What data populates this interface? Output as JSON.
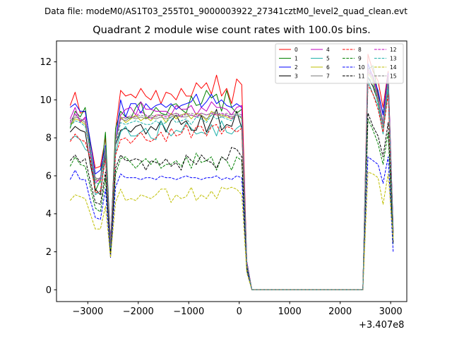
{
  "suptitle": "Data file: modeM0/AS1T03_255T01_9000003922_27341cztM0_level2_quad_clean.evt",
  "chart_data": {
    "type": "line",
    "title": "Quadrant 2 module wise count rates with 100.0s bins.",
    "xlabel": "",
    "ylabel": "",
    "x_offset_text": "+3.407e8",
    "xlim": [
      -3620,
      3320
    ],
    "ylim": [
      -0.62,
      13.1
    ],
    "xticks": [
      -3000,
      -2000,
      -1000,
      0,
      1000,
      2000,
      3000
    ],
    "xtick_labels": [
      "−3000",
      "−2000",
      "−1000",
      "0",
      "1000",
      "2000",
      "3000"
    ],
    "yticks": [
      0,
      2,
      4,
      6,
      8,
      10,
      12
    ],
    "ytick_labels": [
      "0",
      "2",
      "4",
      "6",
      "8",
      "10",
      "12"
    ],
    "grid": false,
    "legend_placement": "top-right",
    "legend_columns": 4,
    "x": [
      -3350,
      -3250,
      -3150,
      -3050,
      -2950,
      -2850,
      -2750,
      -2650,
      -2550,
      -2450,
      -2350,
      -2250,
      -2150,
      -2050,
      -1950,
      -1850,
      -1750,
      -1650,
      -1550,
      -1450,
      -1350,
      -1250,
      -1150,
      -1050,
      -950,
      -850,
      -750,
      -650,
      -550,
      -450,
      -350,
      -250,
      -150,
      -50,
      50,
      150,
      250,
      350,
      450,
      550,
      650,
      750,
      850,
      950,
      1050,
      1150,
      1250,
      1350,
      1450,
      1550,
      1650,
      1750,
      1850,
      1950,
      2050,
      2150,
      2250,
      2350,
      2450,
      2550,
      2650,
      2750,
      2850,
      2950,
      3050
    ],
    "series": [
      {
        "name": "0",
        "color": "#ff0000",
        "dash": "solid",
        "values": [
          9.7,
          10.4,
          9.3,
          9.4,
          7.8,
          6.4,
          6.5,
          8.0,
          2.3,
          8.4,
          10.5,
          10.2,
          10.3,
          10.1,
          10.6,
          10.2,
          10.0,
          10.5,
          9.8,
          10.4,
          10.3,
          10.0,
          10.6,
          10.2,
          10.2,
          10.9,
          10.6,
          10.9,
          10.3,
          11.3,
          10.2,
          10.6,
          9.8,
          11.1,
          10.8,
          1.5,
          0,
          0,
          0,
          0,
          0,
          0,
          0,
          0,
          0,
          0,
          0,
          0,
          0,
          0,
          0,
          0,
          0,
          0,
          0,
          0,
          0,
          0,
          0,
          12.4,
          11.5,
          11.0,
          9.6,
          11.5,
          3.2
        ]
      },
      {
        "name": "1",
        "color": "#008000",
        "dash": "solid",
        "values": [
          8.5,
          9.4,
          9.1,
          9.6,
          7.5,
          5.2,
          5.8,
          8.3,
          2.4,
          8.5,
          9.4,
          9.1,
          9.0,
          9.6,
          9.9,
          9.0,
          9.2,
          9.6,
          9.3,
          9.2,
          9.7,
          9.8,
          9.5,
          9.3,
          10.2,
          9.7,
          9.8,
          10.5,
          10.1,
          10.3,
          9.4,
          10.5,
          9.6,
          9.3,
          9.5,
          1.4,
          0,
          0,
          0,
          0,
          0,
          0,
          0,
          0,
          0,
          0,
          0,
          0,
          0,
          0,
          0,
          0,
          0,
          0,
          0,
          0,
          0,
          0,
          0,
          11.6,
          11.8,
          10.3,
          9.3,
          10.8,
          3.0
        ]
      },
      {
        "name": "2",
        "color": "#0000ff",
        "dash": "solid",
        "values": [
          9.6,
          9.8,
          9.4,
          9.4,
          7.8,
          6.1,
          6.3,
          7.6,
          2.5,
          7.8,
          10.0,
          9.1,
          9.8,
          9.8,
          9.3,
          9.8,
          9.5,
          9.7,
          9.8,
          9.6,
          9.8,
          9.5,
          9.7,
          9.8,
          9.9,
          10.3,
          9.6,
          9.9,
          10.3,
          9.8,
          10.0,
          9.7,
          9.6,
          9.8,
          9.6,
          1.5,
          0,
          0,
          0,
          0,
          0,
          0,
          0,
          0,
          0,
          0,
          0,
          0,
          0,
          0,
          0,
          0,
          0,
          0,
          0,
          0,
          0,
          0,
          0,
          11.9,
          11.2,
          10.5,
          9.2,
          11.4,
          3.2
        ]
      },
      {
        "name": "3",
        "color": "#000000",
        "dash": "solid",
        "values": [
          8.3,
          8.6,
          8.4,
          8.3,
          6.6,
          5.3,
          5.0,
          7.2,
          2.2,
          7.6,
          8.4,
          8.5,
          8.3,
          8.6,
          8.7,
          8.2,
          8.6,
          8.4,
          8.9,
          8.3,
          8.9,
          9.2,
          8.7,
          8.9,
          8.4,
          8.4,
          9.2,
          8.3,
          8.9,
          9.5,
          8.4,
          8.7,
          8.6,
          9.4,
          8.5,
          1.3,
          0,
          0,
          0,
          0,
          0,
          0,
          0,
          0,
          0,
          0,
          0,
          0,
          0,
          0,
          0,
          0,
          0,
          0,
          0,
          0,
          0,
          0,
          0,
          11.2,
          10.7,
          9.9,
          8.8,
          10.5,
          3.0
        ]
      },
      {
        "name": "4",
        "color": "#bf00bf",
        "dash": "solid",
        "values": [
          9.0,
          9.6,
          8.8,
          9.1,
          7.1,
          5.6,
          5.9,
          7.3,
          2.4,
          7.9,
          9.2,
          9.5,
          9.6,
          9.2,
          9.9,
          9.5,
          9.5,
          9.4,
          9.4,
          9.4,
          9.2,
          9.7,
          9.5,
          9.5,
          9.7,
          9.2,
          9.6,
          9.4,
          9.9,
          9.6,
          9.6,
          9.5,
          9.2,
          9.6,
          9.7,
          1.5,
          0,
          0,
          0,
          0,
          0,
          0,
          0,
          0,
          0,
          0,
          0,
          0,
          0,
          0,
          0,
          0,
          0,
          0,
          0,
          0,
          0,
          0,
          0,
          11.6,
          11.3,
          10.2,
          8.8,
          11.3,
          3.1
        ]
      },
      {
        "name": "5",
        "color": "#20b2aa",
        "dash": "solid",
        "values": [
          7.9,
          8.1,
          7.9,
          7.4,
          7.2,
          5.0,
          5.2,
          7.0,
          2.0,
          7.2,
          8.3,
          8.6,
          8.1,
          8.1,
          8.3,
          8.5,
          8.0,
          7.9,
          8.9,
          8.4,
          8.1,
          8.4,
          8.3,
          8.8,
          8.5,
          8.2,
          8.3,
          8.2,
          8.7,
          8.1,
          8.9,
          8.3,
          8.2,
          8.5,
          8.7,
          1.3,
          0,
          0,
          0,
          0,
          0,
          0,
          0,
          0,
          0,
          0,
          0,
          0,
          0,
          0,
          0,
          0,
          0,
          0,
          0,
          0,
          0,
          0,
          0,
          11.0,
          10.3,
          9.7,
          8.2,
          10.6,
          2.8
        ]
      },
      {
        "name": "6",
        "color": "#bfbf00",
        "dash": "solid",
        "values": [
          8.6,
          9.0,
          8.9,
          8.7,
          7.3,
          5.8,
          5.7,
          7.4,
          2.3,
          7.8,
          9.1,
          8.8,
          9.0,
          9.2,
          8.9,
          9.1,
          8.9,
          9.2,
          9.2,
          8.8,
          9.3,
          9.0,
          9.2,
          9.3,
          9.0,
          9.3,
          9.2,
          8.9,
          9.4,
          9.2,
          9.2,
          9.1,
          9.0,
          9.3,
          9.0,
          1.4,
          0,
          0,
          0,
          0,
          0,
          0,
          0,
          0,
          0,
          0,
          0,
          0,
          0,
          0,
          0,
          0,
          0,
          0,
          0,
          0,
          0,
          0,
          0,
          11.4,
          11.0,
          9.9,
          8.6,
          11.0,
          3.0
        ]
      },
      {
        "name": "7",
        "color": "#808080",
        "dash": "solid",
        "values": [
          8.7,
          9.1,
          9.0,
          8.8,
          7.4,
          5.9,
          5.8,
          7.5,
          2.3,
          7.9,
          9.0,
          8.9,
          9.1,
          9.0,
          9.1,
          9.0,
          9.1,
          9.0,
          9.1,
          9.0,
          9.1,
          9.2,
          9.1,
          9.1,
          9.2,
          9.1,
          9.2,
          9.0,
          9.2,
          9.3,
          9.1,
          9.2,
          9.1,
          9.2,
          9.1,
          1.4,
          0,
          0,
          0,
          0,
          0,
          0,
          0,
          0,
          0,
          0,
          0,
          0,
          0,
          0,
          0,
          0,
          0,
          0,
          0,
          0,
          0,
          0,
          0,
          11.5,
          11.1,
          10.0,
          8.7,
          11.1,
          3.0
        ]
      },
      {
        "name": "8",
        "color": "#ff0000",
        "dash": "dashed",
        "values": [
          7.8,
          8.2,
          7.9,
          7.8,
          6.9,
          5.1,
          5.2,
          6.9,
          2.2,
          7.1,
          7.9,
          8.0,
          7.7,
          8.0,
          8.3,
          7.9,
          7.8,
          8.0,
          8.3,
          7.8,
          8.5,
          8.1,
          8.2,
          8.7,
          8.0,
          8.6,
          8.6,
          8.1,
          8.6,
          8.7,
          8.2,
          8.6,
          8.5,
          8.3,
          8.5,
          1.3,
          0,
          0,
          0,
          0,
          0,
          0,
          0,
          0,
          0,
          0,
          0,
          0,
          0,
          0,
          0,
          0,
          0,
          0,
          0,
          0,
          0,
          0,
          0,
          10.8,
          10.3,
          9.5,
          8.3,
          10.3,
          2.8
        ]
      },
      {
        "name": "9",
        "color": "#008000",
        "dash": "dashed",
        "values": [
          6.5,
          7.0,
          6.6,
          6.5,
          5.4,
          4.3,
          4.1,
          5.9,
          1.9,
          6.1,
          6.9,
          7.0,
          6.7,
          6.4,
          6.7,
          6.9,
          6.6,
          6.9,
          6.4,
          6.6,
          6.6,
          6.8,
          6.5,
          7.0,
          6.4,
          7.2,
          6.7,
          6.8,
          7.0,
          6.3,
          7.0,
          6.8,
          6.3,
          7.0,
          6.8,
          1.1,
          0,
          0,
          0,
          0,
          0,
          0,
          0,
          0,
          0,
          0,
          0,
          0,
          0,
          0,
          0,
          0,
          0,
          0,
          0,
          0,
          0,
          0,
          0,
          9.0,
          8.4,
          7.7,
          6.6,
          8.3,
          2.4
        ]
      },
      {
        "name": "10",
        "color": "#0000ff",
        "dash": "dashed",
        "values": [
          5.8,
          6.3,
          5.8,
          5.8,
          4.7,
          3.8,
          3.7,
          5.3,
          1.7,
          5.4,
          6.1,
          5.9,
          5.9,
          5.9,
          5.8,
          5.9,
          5.9,
          5.8,
          6.0,
          5.9,
          5.9,
          5.8,
          5.9,
          6.0,
          5.9,
          5.9,
          5.8,
          5.9,
          5.9,
          6.0,
          5.8,
          5.9,
          5.8,
          6.0,
          5.9,
          1.0,
          0,
          0,
          0,
          0,
          0,
          0,
          0,
          0,
          0,
          0,
          0,
          0,
          0,
          0,
          0,
          0,
          0,
          0,
          0,
          0,
          0,
          0,
          0,
          7.0,
          6.8,
          6.6,
          5.6,
          7.0,
          2.0
        ]
      },
      {
        "name": "11",
        "color": "#000000",
        "dash": "dashed",
        "values": [
          6.8,
          7.1,
          6.7,
          6.9,
          5.7,
          4.6,
          4.5,
          6.2,
          1.9,
          6.4,
          7.1,
          6.8,
          6.8,
          6.9,
          6.8,
          6.3,
          6.8,
          6.7,
          6.6,
          6.9,
          6.5,
          6.7,
          6.3,
          7.1,
          6.8,
          6.6,
          7.1,
          6.8,
          6.7,
          6.4,
          7.0,
          6.8,
          7.5,
          7.4,
          7.0,
          1.2,
          0,
          0,
          0,
          0,
          0,
          0,
          0,
          0,
          0,
          0,
          0,
          0,
          0,
          0,
          0,
          0,
          0,
          0,
          0,
          0,
          0,
          0,
          0,
          9.3,
          8.6,
          8.1,
          7.0,
          8.8,
          2.5
        ]
      },
      {
        "name": "12",
        "color": "#bf00bf",
        "dash": "dashed",
        "values": [
          8.8,
          9.3,
          8.9,
          9.0,
          7.2,
          5.7,
          5.8,
          7.3,
          2.3,
          7.8,
          9.0,
          9.1,
          9.1,
          9.1,
          9.4,
          9.2,
          9.0,
          9.2,
          9.2,
          9.1,
          9.2,
          9.3,
          9.1,
          9.3,
          9.2,
          9.1,
          9.3,
          9.2,
          9.3,
          9.2,
          9.3,
          9.2,
          9.0,
          9.3,
          9.2,
          1.4,
          0,
          0,
          0,
          0,
          0,
          0,
          0,
          0,
          0,
          0,
          0,
          0,
          0,
          0,
          0,
          0,
          0,
          0,
          0,
          0,
          0,
          0,
          0,
          11.5,
          11.2,
          10.1,
          8.7,
          11.2,
          3.1
        ]
      },
      {
        "name": "13",
        "color": "#20b2aa",
        "dash": "dashed",
        "values": [
          8.6,
          8.9,
          8.8,
          8.6,
          7.3,
          5.6,
          5.6,
          7.3,
          2.2,
          7.6,
          8.8,
          8.7,
          8.8,
          8.9,
          8.8,
          8.7,
          8.7,
          8.9,
          8.7,
          8.8,
          9.1,
          8.8,
          8.9,
          9.0,
          8.7,
          9.1,
          9.0,
          8.8,
          9.2,
          9.0,
          9.1,
          9.0,
          8.9,
          9.3,
          9.0,
          1.4,
          0,
          0,
          0,
          0,
          0,
          0,
          0,
          0,
          0,
          0,
          0,
          0,
          0,
          0,
          0,
          0,
          0,
          0,
          0,
          0,
          0,
          0,
          0,
          11.2,
          10.9,
          9.8,
          8.5,
          10.9,
          3.0
        ]
      },
      {
        "name": "14",
        "color": "#bfbf00",
        "dash": "dashed",
        "values": [
          4.7,
          5.0,
          4.9,
          4.8,
          4.0,
          3.2,
          3.2,
          4.4,
          1.7,
          4.6,
          5.3,
          4.7,
          4.8,
          4.7,
          5.0,
          4.9,
          4.8,
          5.0,
          5.3,
          5.3,
          4.6,
          5.0,
          4.8,
          4.9,
          5.4,
          4.7,
          5.0,
          4.8,
          5.2,
          4.8,
          5.4,
          5.3,
          5.4,
          5.3,
          5.0,
          0.9,
          0,
          0,
          0,
          0,
          0,
          0,
          0,
          0,
          0,
          0,
          0,
          0,
          0,
          0,
          0,
          0,
          0,
          0,
          0,
          0,
          0,
          0,
          0,
          6.2,
          6.1,
          5.9,
          4.5,
          6.1,
          2.7
        ]
      },
      {
        "name": "15",
        "color": "#808080",
        "dash": "dashed",
        "values": [
          8.9,
          9.2,
          9.0,
          8.9,
          7.4,
          5.8,
          5.9,
          7.4,
          2.3,
          7.9,
          9.1,
          9.0,
          9.2,
          9.1,
          9.2,
          9.1,
          9.2,
          9.1,
          9.2,
          9.2,
          9.2,
          9.3,
          9.2,
          9.2,
          9.3,
          9.2,
          9.3,
          9.2,
          9.3,
          9.4,
          9.2,
          9.3,
          9.2,
          9.3,
          9.2,
          1.4,
          0,
          0,
          0,
          0,
          0,
          0,
          0,
          0,
          0,
          0,
          0,
          0,
          0,
          0,
          0,
          0,
          0,
          0,
          0,
          0,
          0,
          0,
          0,
          11.6,
          11.2,
          10.1,
          8.8,
          11.2,
          3.1
        ]
      }
    ]
  }
}
